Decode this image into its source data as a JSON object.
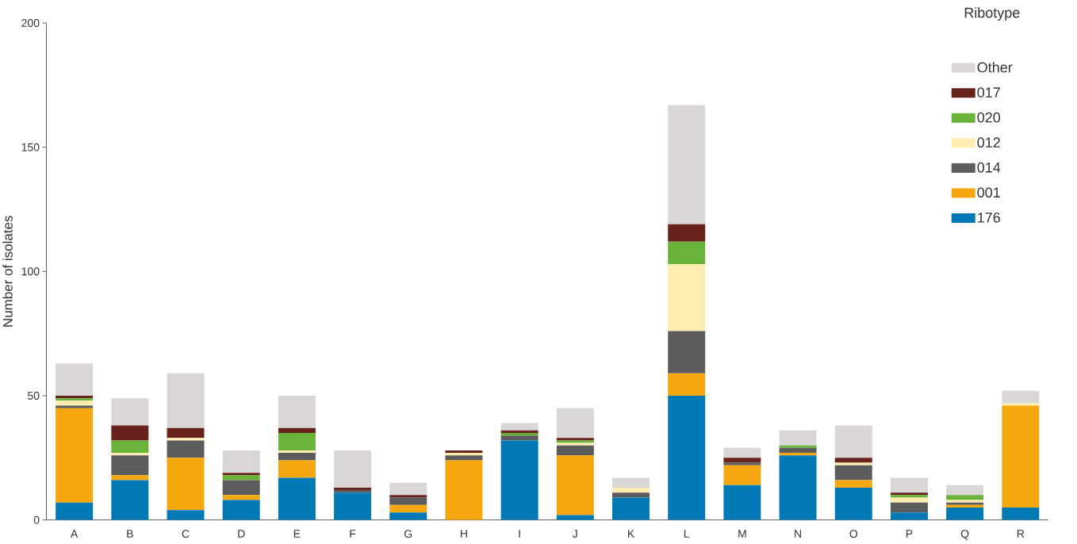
{
  "chart_data": {
    "type": "bar",
    "stacked": true,
    "ylabel": "Number of isolates",
    "legend_title": "Ribotype",
    "legend": "top right",
    "categories": [
      "A",
      "B",
      "C",
      "D",
      "E",
      "F",
      "G",
      "H",
      "I",
      "J",
      "K",
      "L",
      "M",
      "N",
      "O",
      "P",
      "Q",
      "R"
    ],
    "ylim": [
      0,
      200
    ],
    "yticks": [
      0,
      50,
      100,
      150,
      200
    ],
    "grid": false,
    "series": [
      {
        "name": "176",
        "color": "#0079b4",
        "values": [
          7,
          16,
          4,
          8,
          17,
          11,
          3,
          0,
          32,
          2,
          9,
          50,
          14,
          26,
          13,
          3,
          5,
          5
        ]
      },
      {
        "name": "001",
        "color": "#f5a70f",
        "values": [
          38,
          2,
          21,
          2,
          7,
          0,
          3,
          24,
          0,
          24,
          0,
          9,
          8,
          1,
          3,
          0,
          1,
          41
        ]
      },
      {
        "name": "014",
        "color": "#5c5c5c",
        "values": [
          1,
          8,
          7,
          6,
          3,
          1,
          3,
          2,
          2,
          4,
          2,
          17,
          1,
          2,
          6,
          4,
          1,
          0
        ]
      },
      {
        "name": "012",
        "color": "#feecb0",
        "values": [
          2,
          1,
          1,
          0,
          1,
          0,
          0,
          1,
          0,
          1,
          2,
          27,
          0,
          0,
          1,
          2,
          1,
          1
        ]
      },
      {
        "name": "020",
        "color": "#69b33a",
        "values": [
          1,
          5,
          0,
          2,
          7,
          0,
          0,
          0,
          1,
          1,
          0,
          9,
          0,
          1,
          0,
          1,
          2,
          0
        ]
      },
      {
        "name": "017",
        "color": "#68231d",
        "values": [
          1,
          6,
          4,
          1,
          2,
          1,
          1,
          1,
          1,
          1,
          0,
          7,
          2,
          0,
          2,
          1,
          0,
          0
        ]
      },
      {
        "name": "Other",
        "color": "#dad6d6",
        "values": [
          13,
          11,
          22,
          9,
          13,
          15,
          5,
          0,
          3,
          12,
          4,
          48,
          4,
          6,
          13,
          6,
          4,
          5
        ]
      }
    ]
  }
}
